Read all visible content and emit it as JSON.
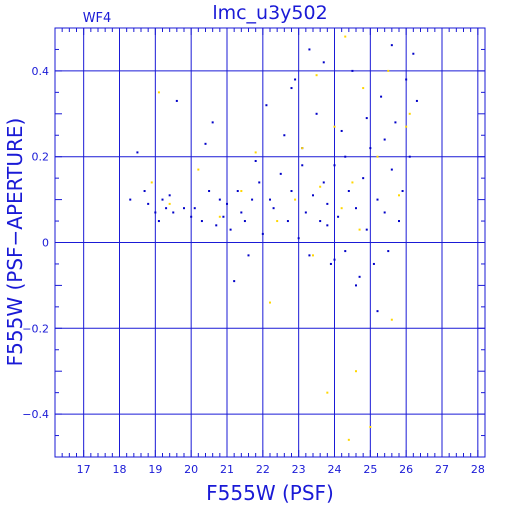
{
  "chart_data": {
    "type": "scatter",
    "title": "lmc_u3y502",
    "panel_label": "WF4",
    "xlabel": "F555W (PSF)",
    "ylabel": "F555W (PSF−APERTURE)",
    "xlim": [
      16.2,
      28.2
    ],
    "ylim": [
      -0.5,
      0.5
    ],
    "x_ticks": [
      17,
      18,
      19,
      20,
      21,
      22,
      23,
      24,
      25,
      26,
      27,
      28
    ],
    "y_ticks": [
      -0.4,
      -0.2,
      0,
      0.2,
      0.4
    ],
    "y_tick_labels": [
      "−0.4",
      "−0.2",
      "0",
      "0.2",
      "0.4"
    ],
    "grid": true,
    "colors": {
      "frame": "#1a1ad6",
      "primary": "#0000c8",
      "secondary": "#ffd700"
    },
    "series": [
      {
        "color": "#0000c8",
        "points": [
          [
            18.3,
            0.1
          ],
          [
            18.5,
            0.21
          ],
          [
            18.7,
            0.12
          ],
          [
            18.8,
            0.09
          ],
          [
            19.0,
            0.07
          ],
          [
            19.1,
            0.05
          ],
          [
            19.2,
            0.1
          ],
          [
            19.3,
            0.08
          ],
          [
            19.4,
            0.11
          ],
          [
            19.5,
            0.07
          ],
          [
            19.6,
            0.33
          ],
          [
            19.8,
            0.08
          ],
          [
            20.0,
            0.06
          ],
          [
            20.1,
            0.08
          ],
          [
            20.3,
            0.05
          ],
          [
            20.4,
            0.23
          ],
          [
            20.5,
            0.12
          ],
          [
            20.6,
            0.28
          ],
          [
            20.7,
            0.04
          ],
          [
            20.8,
            0.1
          ],
          [
            20.9,
            0.06
          ],
          [
            21.0,
            0.09
          ],
          [
            21.1,
            0.03
          ],
          [
            21.2,
            -0.09
          ],
          [
            21.3,
            0.12
          ],
          [
            21.4,
            0.07
          ],
          [
            21.5,
            0.05
          ],
          [
            21.6,
            -0.03
          ],
          [
            21.7,
            0.1
          ],
          [
            21.8,
            0.19
          ],
          [
            21.9,
            0.14
          ],
          [
            22.0,
            0.02
          ],
          [
            22.1,
            0.32
          ],
          [
            22.2,
            0.1
          ],
          [
            22.3,
            0.08
          ],
          [
            22.5,
            0.16
          ],
          [
            22.6,
            0.25
          ],
          [
            22.7,
            0.05
          ],
          [
            22.8,
            0.12
          ],
          [
            22.9,
            0.38
          ],
          [
            23.0,
            0.01
          ],
          [
            23.1,
            0.22
          ],
          [
            23.2,
            0.07
          ],
          [
            23.3,
            -0.03
          ],
          [
            23.4,
            0.11
          ],
          [
            23.5,
            0.3
          ],
          [
            23.6,
            0.05
          ],
          [
            23.7,
            0.14
          ],
          [
            23.8,
            0.09
          ],
          [
            23.9,
            -0.05
          ],
          [
            24.0,
            0.18
          ],
          [
            24.1,
            0.06
          ],
          [
            24.2,
            0.26
          ],
          [
            24.3,
            -0.02
          ],
          [
            24.4,
            0.12
          ],
          [
            24.5,
            0.4
          ],
          [
            24.6,
            0.08
          ],
          [
            24.7,
            -0.08
          ],
          [
            24.8,
            0.15
          ],
          [
            24.9,
            0.03
          ],
          [
            25.0,
            0.22
          ],
          [
            25.1,
            -0.05
          ],
          [
            25.2,
            0.1
          ],
          [
            25.3,
            0.34
          ],
          [
            25.4,
            0.07
          ],
          [
            25.5,
            -0.02
          ],
          [
            25.6,
            0.17
          ],
          [
            25.7,
            0.28
          ],
          [
            25.8,
            0.05
          ],
          [
            25.9,
            0.12
          ],
          [
            26.0,
            0.38
          ],
          [
            26.1,
            0.2
          ],
          [
            26.2,
            0.44
          ],
          [
            26.3,
            0.33
          ],
          [
            23.3,
            0.45
          ],
          [
            24.0,
            -0.04
          ],
          [
            24.6,
            -0.1
          ],
          [
            25.2,
            -0.16
          ],
          [
            22.8,
            0.36
          ],
          [
            23.7,
            0.42
          ],
          [
            25.6,
            0.46
          ],
          [
            24.9,
            0.29
          ],
          [
            23.1,
            0.18
          ],
          [
            24.3,
            0.2
          ],
          [
            25.4,
            0.24
          ],
          [
            23.8,
            0.04
          ]
        ]
      },
      {
        "color": "#ffd700",
        "points": [
          [
            18.9,
            0.14
          ],
          [
            19.1,
            0.35
          ],
          [
            19.4,
            0.09
          ],
          [
            20.2,
            0.17
          ],
          [
            20.8,
            0.06
          ],
          [
            21.4,
            0.12
          ],
          [
            21.8,
            0.21
          ],
          [
            22.2,
            -0.14
          ],
          [
            22.4,
            0.05
          ],
          [
            22.9,
            0.1
          ],
          [
            23.1,
            0.22
          ],
          [
            23.4,
            -0.03
          ],
          [
            23.6,
            0.13
          ],
          [
            23.8,
            -0.35
          ],
          [
            24.0,
            0.27
          ],
          [
            24.2,
            0.08
          ],
          [
            24.4,
            -0.46
          ],
          [
            24.5,
            0.14
          ],
          [
            24.6,
            -0.3
          ],
          [
            24.7,
            0.03
          ],
          [
            24.8,
            0.36
          ],
          [
            25.0,
            -0.43
          ],
          [
            25.2,
            0.2
          ],
          [
            25.5,
            0.4
          ],
          [
            25.6,
            -0.18
          ],
          [
            25.8,
            0.11
          ],
          [
            26.0,
            0.27
          ],
          [
            26.1,
            0.3
          ],
          [
            24.3,
            0.48
          ],
          [
            23.5,
            0.39
          ]
        ]
      }
    ]
  }
}
